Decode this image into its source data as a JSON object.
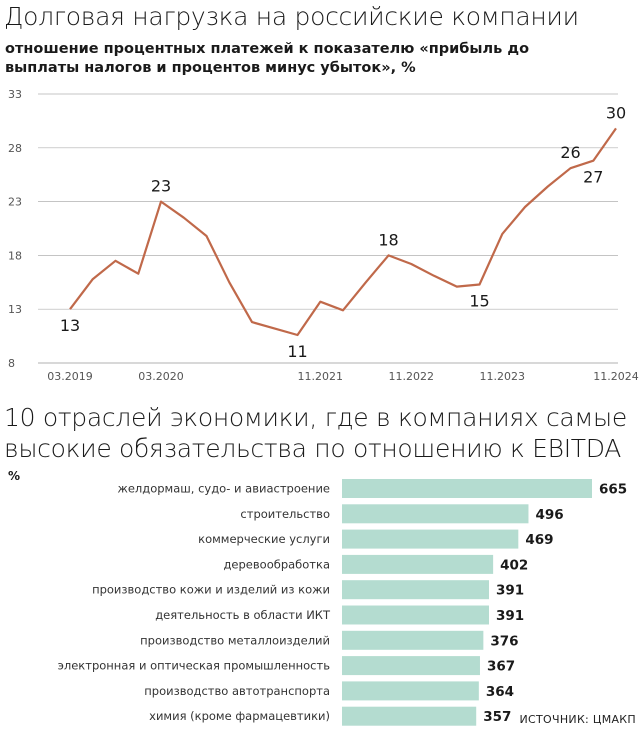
{
  "line_chart": {
    "title": "Долговая нагрузка на российские компании",
    "subtitle": "отношение процентных платежей к показателю «прибыль до выплаты налогов и процентов минус убыток», %"
  },
  "bar_chart": {
    "title": "10 отраслей экономики, где в компаниях самые высокие обязательства по отношению к EBITDA",
    "unit": "%"
  },
  "source": "ИСТОЧНИК: ЦМАКП",
  "colors": {
    "line": "#c0694a",
    "bar": "#b4dcd0",
    "grid": "#b0b0b0"
  },
  "chart_data": [
    {
      "type": "line",
      "title": "Долговая нагрузка на российские компании",
      "subtitle": "отношение процентных платежей к показателю «прибыль до выплаты налогов и процентов минус убыток», %",
      "ylabel": "",
      "ylim": [
        8,
        33
      ],
      "yticks": [
        8,
        13,
        18,
        23,
        28,
        33
      ],
      "x_tick_labels": [
        "03.2019",
        "03.2020",
        "11.2021",
        "11.2022",
        "11.2023",
        "11.2024"
      ],
      "x_tick_positions": [
        0,
        4,
        11,
        15,
        19,
        24
      ],
      "grid": true,
      "series": [
        {
          "values": [
            13,
            15.8,
            17.5,
            16.3,
            23,
            21.5,
            19.8,
            15.5,
            11.8,
            11.2,
            10.6,
            13.7,
            12.9,
            15.5,
            18,
            17.2,
            16.1,
            15.1,
            15.3,
            20,
            22.5,
            24.4,
            26.1,
            26.8,
            29.8
          ]
        }
      ],
      "annotations": [
        {
          "index": 0,
          "text": "13",
          "pos": "below"
        },
        {
          "index": 4,
          "text": "23",
          "pos": "above"
        },
        {
          "index": 10,
          "text": "11",
          "pos": "below"
        },
        {
          "index": 14,
          "text": "18",
          "pos": "above"
        },
        {
          "index": 18,
          "text": "15",
          "pos": "below"
        },
        {
          "index": 22,
          "text": "26",
          "pos": "above"
        },
        {
          "index": 23,
          "text": "27",
          "pos": "below"
        },
        {
          "index": 24,
          "text": "30",
          "pos": "above"
        }
      ]
    },
    {
      "type": "bar",
      "orientation": "horizontal",
      "title": "10 отраслей экономики, где в компаниях самые высокие обязательства по отношению к EBITDA",
      "unit": "%",
      "categories": [
        "желдормаш, судо- и авиастроение",
        "строительство",
        "коммерческие услуги",
        "деревообработка",
        "производство кожи и изделий из кожи",
        "деятельность в области ИКТ",
        "производство металлоизделий",
        "электронная и оптическая промышленность",
        "производство автотранспорта",
        "химия (кроме фармацевтики)"
      ],
      "values": [
        665,
        496,
        469,
        402,
        391,
        391,
        376,
        367,
        364,
        357
      ]
    }
  ]
}
